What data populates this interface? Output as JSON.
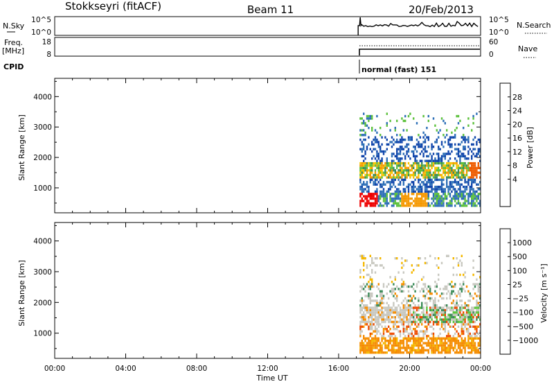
{
  "header": {
    "station": "Stokkseyri (fitACF)",
    "beam": "Beam 11",
    "date": "20/Feb/2013"
  },
  "top_panels": {
    "nsky": {
      "left_label": "N.Sky",
      "ticks": [
        "10^5",
        "10^0"
      ],
      "right_ticks": [
        "10^5",
        "10^0"
      ],
      "right_label": "N.Search"
    },
    "freq": {
      "left_label_1": "Freq.",
      "left_label_2": "[MHz]",
      "ticks": [
        "18",
        "8"
      ],
      "right_ticks": [
        "60",
        "0"
      ],
      "right_label": "Nave"
    },
    "cpid": {
      "label": "CPID",
      "mode_text": "normal (fast) 151"
    }
  },
  "chart_data": [
    {
      "type": "heatmap",
      "name": "power-panel",
      "ylabel": "Slant Range [km]",
      "y_ticks": [
        1000,
        2000,
        3000,
        4000
      ],
      "ylim": [
        180,
        4600
      ],
      "x_ticks": [
        "00:00",
        "04:00",
        "08:00",
        "12:00",
        "16:00",
        "20:00",
        "00:00"
      ],
      "xlim_hours": [
        0,
        24
      ],
      "data_start_hour": 17.1,
      "colorbar": {
        "label": "Power [dB]",
        "ticks": [
          "28",
          "24",
          "20",
          "16",
          "12",
          "8",
          "4"
        ],
        "colors": [
          "#0000ee",
          "#0d43aa",
          "#2d6fb7",
          "#3b8c57",
          "#5cc13c",
          "#f5c400",
          "#f59800",
          "#ee5b00",
          "#ee0000"
        ]
      }
    },
    {
      "type": "heatmap",
      "name": "velocity-panel",
      "ylabel": "Slant Range [km]",
      "y_ticks": [
        1000,
        2000,
        3000,
        4000
      ],
      "ylim": [
        180,
        4600
      ],
      "x_ticks": [
        "00:00",
        "04:00",
        "08:00",
        "12:00",
        "16:00",
        "20:00",
        "00:00"
      ],
      "xlim_hours": [
        0,
        24
      ],
      "data_start_hour": 17.1,
      "colorbar": {
        "label": "Velocity [m s⁻¹]",
        "ticks": [
          "1000",
          "500",
          "100",
          "25",
          "−25",
          "−100",
          "−500",
          "−1000"
        ],
        "colors": [
          "#1133bb",
          "#2f6cb5",
          "#3a8a58",
          "#5ac43a",
          "#c8c8c0",
          "#f5b800",
          "#f58c00",
          "#ee4a00",
          "#ee0000"
        ]
      }
    }
  ],
  "xaxis": {
    "label": "Time UT"
  }
}
